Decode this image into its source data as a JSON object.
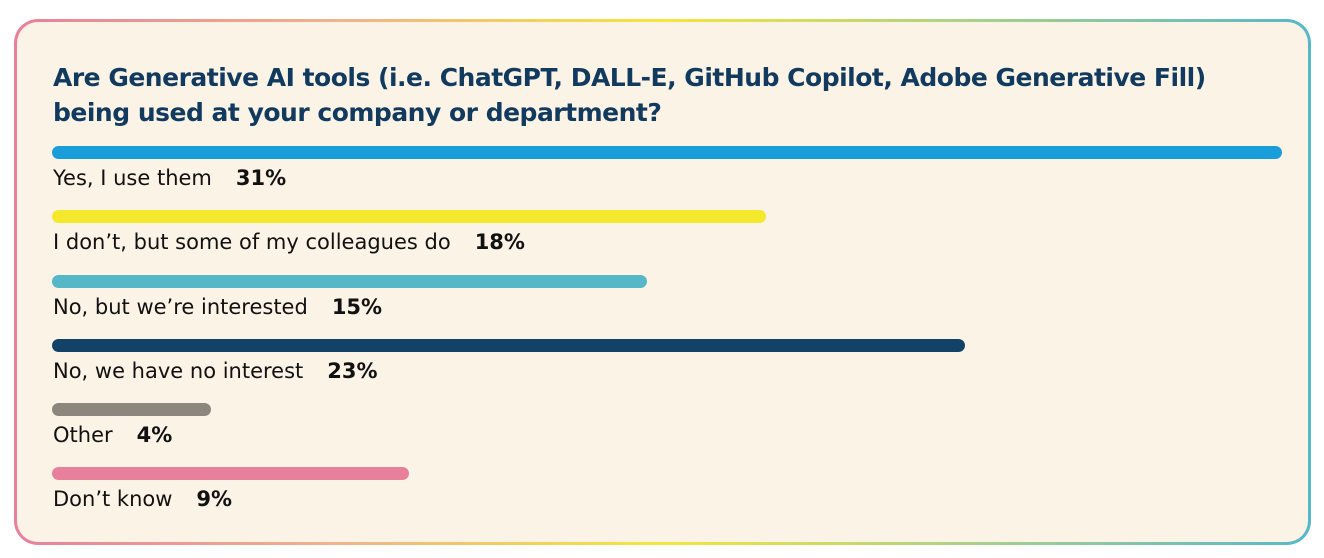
{
  "title": "Are Generative AI tools (i.e. ChatGPT, DALL-E, GitHub Copilot, Adobe Generative Fill) being used at your company or department?",
  "chart_data": {
    "type": "bar",
    "orientation": "horizontal",
    "title": "Are Generative AI tools (i.e. ChatGPT, DALL-E, GitHub Copilot, Adobe Generative Fill) being used at your company or department?",
    "categories": [
      "Yes, I use them",
      "I don’t, but some of my colleagues do",
      "No, but we’re interested",
      "No, we have no interest",
      "Other",
      "Don’t know"
    ],
    "values": [
      31,
      18,
      15,
      23,
      4,
      9
    ],
    "value_labels": [
      "31%",
      "18%",
      "15%",
      "23%",
      "4%",
      "9%"
    ],
    "colors": [
      "#1a9ed9",
      "#f4e82c",
      "#56b7c9",
      "#134267",
      "#8b877c",
      "#e8809c"
    ],
    "max": 31,
    "grid": false,
    "legend": "none"
  }
}
